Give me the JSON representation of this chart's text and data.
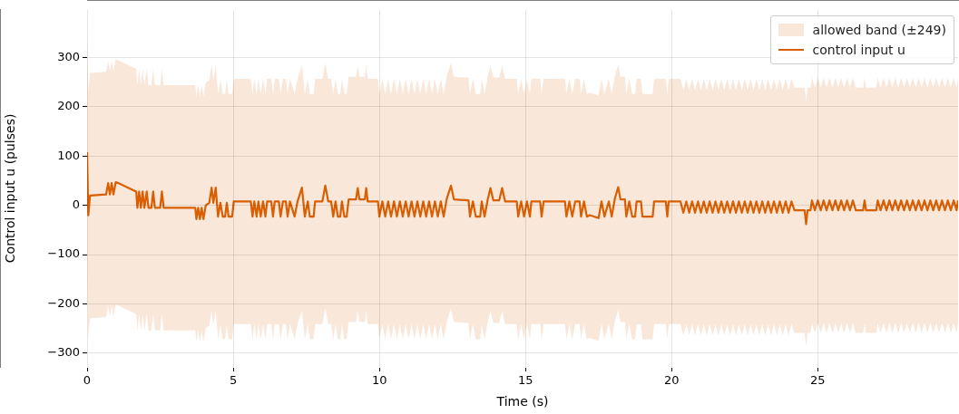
{
  "chart_data": {
    "type": "line",
    "xlabel": "Time (s)",
    "ylabel": "Control input u (pulses)",
    "xlim": [
      0,
      29.8
    ],
    "xticks": [
      0,
      5,
      10,
      15,
      20,
      25
    ],
    "ylim": [
      -328,
      397
    ],
    "yticks": [
      {
        "value": -300,
        "label": "−300"
      },
      {
        "value": -200,
        "label": "−200"
      },
      {
        "value": -100,
        "label": "−100"
      },
      0,
      100,
      200,
      300
    ],
    "annotations": [
      "allowed band (±249)"
    ],
    "grid": true,
    "legend": "top right",
    "marker": "none",
    "line_style": "solid",
    "x": [
      0,
      0.04,
      0.1,
      0.65,
      0.72,
      0.78,
      0.84,
      0.9,
      0.98,
      1.08,
      1.68,
      1.72,
      1.78,
      1.84,
      1.9,
      1.96,
      2.04,
      2.1,
      2.2,
      2.26,
      2.32,
      2.5,
      2.56,
      2.62,
      3.7,
      3.74,
      3.8,
      3.86,
      3.92,
      3.98,
      4.06,
      4.18,
      4.26,
      4.32,
      4.4,
      4.48,
      4.56,
      4.64,
      4.72,
      4.78,
      4.84,
      4.96,
      5.02,
      5.6,
      5.66,
      5.72,
      5.8,
      5.86,
      5.94,
      6.02,
      6.1,
      6.16,
      6.3,
      6.36,
      6.42,
      6.56,
      6.62,
      6.7,
      6.8,
      6.86,
      6.94,
      7.1,
      7.2,
      7.35,
      7.45,
      7.55,
      7.62,
      7.75,
      7.8,
      8.05,
      8.15,
      8.25,
      8.35,
      8.42,
      8.5,
      8.58,
      8.66,
      8.72,
      8.8,
      8.88,
      8.95,
      9.2,
      9.26,
      9.32,
      9.5,
      9.55,
      9.6,
      9.95,
      10,
      10.1,
      10.2,
      10.3,
      10.4,
      10.5,
      10.6,
      10.7,
      10.8,
      10.9,
      11,
      11.1,
      11.2,
      11.3,
      11.4,
      11.5,
      11.6,
      11.7,
      11.8,
      11.9,
      12,
      12.1,
      12.2,
      12.3,
      12.45,
      12.55,
      13.05,
      13.1,
      13.2,
      13.3,
      13.45,
      13.5,
      13.6,
      13.7,
      13.8,
      13.9,
      14.1,
      14.2,
      14.3,
      14.7,
      14.75,
      14.85,
      14.95,
      15.05,
      15.15,
      15.2,
      15.5,
      15.55,
      15.62,
      16.35,
      16.4,
      16.5,
      16.6,
      16.7,
      16.85,
      16.9,
      17,
      17.1,
      17.2,
      17.5,
      17.6,
      17.7,
      17.85,
      17.95,
      18.05,
      18.17,
      18.25,
      18.4,
      18.45,
      18.55,
      18.65,
      18.75,
      18.8,
      18.95,
      19,
      19.35,
      19.4,
      19.8,
      19.85,
      19.9,
      20.3,
      20.4,
      20.5,
      20.6,
      20.7,
      20.8,
      20.9,
      21,
      21.1,
      21.2,
      21.3,
      21.4,
      21.5,
      21.6,
      21.7,
      21.8,
      21.9,
      22,
      22.1,
      22.2,
      22.3,
      22.4,
      22.5,
      22.6,
      22.7,
      22.8,
      22.9,
      23,
      23.1,
      23.2,
      23.3,
      23.4,
      23.5,
      23.6,
      23.7,
      23.8,
      23.9,
      24,
      24.1,
      24.2,
      24.55,
      24.6,
      24.65,
      24.75,
      24.8,
      24.9,
      25,
      25.1,
      25.2,
      25.3,
      25.4,
      25.5,
      25.6,
      25.7,
      25.8,
      25.9,
      26,
      26.1,
      26.2,
      26.3,
      26.55,
      26.6,
      26.65,
      27,
      27.05,
      27.15,
      27.25,
      27.35,
      27.45,
      27.55,
      27.65,
      27.75,
      27.85,
      27.95,
      28.05,
      28.15,
      28.25,
      28.35,
      28.45,
      28.55,
      28.65,
      28.75,
      28.85,
      28.95,
      29.05,
      29.15,
      29.25,
      29.35,
      29.45,
      29.55,
      29.65,
      29.75,
      29.8
    ],
    "series": [
      {
        "name": "control input u",
        "type": "line",
        "color": "#d95f02",
        "upper": [
          357,
          229,
          269,
          271,
          294,
          271,
          294,
          271,
          296,
          294,
          277,
          244,
          277,
          244,
          277,
          244,
          277,
          244,
          244,
          277,
          244,
          244,
          277,
          244,
          244,
          221,
          244,
          221,
          244,
          221,
          249,
          254,
          285,
          254,
          285,
          226,
          254,
          226,
          226,
          254,
          226,
          226,
          257,
          257,
          226,
          257,
          226,
          257,
          226,
          257,
          226,
          257,
          257,
          226,
          257,
          257,
          226,
          257,
          257,
          226,
          257,
          226,
          257,
          285,
          226,
          257,
          226,
          226,
          257,
          257,
          289,
          257,
          257,
          226,
          257,
          226,
          226,
          257,
          226,
          226,
          261,
          261,
          284,
          261,
          261,
          284,
          257,
          257,
          226,
          257,
          226,
          257,
          226,
          257,
          226,
          257,
          226,
          257,
          226,
          257,
          226,
          257,
          226,
          257,
          226,
          257,
          226,
          257,
          226,
          257,
          226,
          261,
          289,
          261,
          259,
          226,
          257,
          226,
          226,
          257,
          226,
          259,
          284,
          259,
          259,
          284,
          257,
          257,
          226,
          257,
          226,
          257,
          226,
          257,
          257,
          226,
          257,
          257,
          226,
          257,
          226,
          257,
          257,
          226,
          257,
          226,
          229,
          223,
          257,
          226,
          257,
          226,
          261,
          286,
          261,
          261,
          226,
          257,
          226,
          226,
          257,
          257,
          226,
          226,
          257,
          257,
          226,
          257,
          257,
          234,
          257,
          234,
          257,
          234,
          257,
          234,
          257,
          234,
          257,
          234,
          257,
          234,
          257,
          234,
          257,
          234,
          257,
          234,
          257,
          234,
          257,
          234,
          257,
          234,
          257,
          234,
          257,
          234,
          257,
          234,
          257,
          234,
          257,
          234,
          257,
          234,
          257,
          239,
          239,
          211,
          239,
          239,
          259,
          239,
          259,
          239,
          259,
          239,
          259,
          239,
          259,
          239,
          259,
          239,
          259,
          239,
          259,
          239,
          239,
          259,
          239,
          239,
          259,
          239,
          259,
          239,
          259,
          239,
          259,
          239,
          259,
          239,
          259,
          239,
          259,
          239,
          259,
          239,
          259,
          239,
          259,
          239,
          259,
          239,
          259,
          239,
          259,
          239,
          259,
          239,
          259
        ],
        "lower": [
          -141,
          -269,
          -229,
          -227,
          -204,
          -227,
          -204,
          -227,
          -202,
          -204,
          -221,
          -254,
          -221,
          -254,
          -221,
          -254,
          -221,
          -254,
          -254,
          -221,
          -254,
          -254,
          -221,
          -254,
          -254,
          -277,
          -254,
          -277,
          -254,
          -277,
          -249,
          -244,
          -213,
          -244,
          -213,
          -272,
          -244,
          -272,
          -272,
          -244,
          -272,
          -272,
          -241,
          -241,
          -272,
          -241,
          -272,
          -241,
          -272,
          -241,
          -272,
          -241,
          -241,
          -272,
          -241,
          -241,
          -272,
          -241,
          -241,
          -272,
          -241,
          -272,
          -241,
          -213,
          -272,
          -241,
          -272,
          -272,
          -241,
          -241,
          -209,
          -241,
          -241,
          -272,
          -241,
          -272,
          -272,
          -241,
          -272,
          -272,
          -237,
          -237,
          -214,
          -237,
          -237,
          -214,
          -241,
          -241,
          -272,
          -241,
          -272,
          -241,
          -272,
          -241,
          -272,
          -241,
          -272,
          -241,
          -272,
          -241,
          -272,
          -241,
          -272,
          -241,
          -272,
          -241,
          -272,
          -241,
          -272,
          -241,
          -272,
          -237,
          -209,
          -237,
          -239,
          -272,
          -241,
          -272,
          -272,
          -241,
          -272,
          -239,
          -214,
          -239,
          -239,
          -214,
          -241,
          -241,
          -272,
          -241,
          -272,
          -241,
          -272,
          -241,
          -241,
          -272,
          -241,
          -241,
          -272,
          -241,
          -272,
          -241,
          -241,
          -272,
          -241,
          -272,
          -269,
          -275,
          -241,
          -272,
          -241,
          -272,
          -237,
          -212,
          -237,
          -237,
          -272,
          -241,
          -272,
          -272,
          -241,
          -241,
          -272,
          -272,
          -241,
          -241,
          -272,
          -241,
          -241,
          -264,
          -241,
          -264,
          -241,
          -264,
          -241,
          -264,
          -241,
          -264,
          -241,
          -264,
          -241,
          -264,
          -241,
          -264,
          -241,
          -264,
          -241,
          -264,
          -241,
          -264,
          -241,
          -264,
          -241,
          -264,
          -241,
          -264,
          -241,
          -264,
          -241,
          -264,
          -241,
          -264,
          -241,
          -264,
          -241,
          -264,
          -241,
          -259,
          -259,
          -287,
          -259,
          -259,
          -239,
          -259,
          -239,
          -259,
          -239,
          -259,
          -239,
          -259,
          -239,
          -259,
          -239,
          -259,
          -239,
          -259,
          -239,
          -259,
          -259,
          -239,
          -259,
          -259,
          -239,
          -259,
          -239,
          -259,
          -239,
          -259,
          -239,
          -259,
          -239,
          -259,
          -239,
          -259,
          -239,
          -259,
          -239,
          -259,
          -239,
          -259,
          -239,
          -259,
          -239,
          -259,
          -239,
          -259,
          -239,
          -259,
          -239,
          -259,
          -239
        ],
        "values": [
          108,
          -20,
          20,
          22,
          45,
          22,
          45,
          22,
          47,
          45,
          28,
          -5,
          28,
          -5,
          28,
          -5,
          28,
          -5,
          -5,
          28,
          -5,
          -5,
          28,
          -5,
          -5,
          -28,
          -5,
          -28,
          -5,
          -28,
          0,
          5,
          36,
          5,
          36,
          -23,
          5,
          -23,
          -23,
          5,
          -23,
          -23,
          8,
          8,
          -23,
          8,
          -23,
          8,
          -23,
          8,
          -23,
          8,
          8,
          -23,
          8,
          8,
          -23,
          8,
          8,
          -23,
          8,
          -23,
          8,
          36,
          -23,
          8,
          -23,
          -23,
          8,
          8,
          40,
          8,
          8,
          -23,
          8,
          -23,
          -23,
          8,
          -23,
          -23,
          12,
          12,
          35,
          12,
          12,
          35,
          8,
          8,
          -23,
          8,
          -23,
          8,
          -23,
          8,
          -23,
          8,
          -23,
          8,
          -23,
          8,
          -23,
          8,
          -23,
          8,
          -23,
          8,
          -23,
          8,
          -23,
          8,
          -23,
          12,
          40,
          12,
          10,
          -23,
          8,
          -23,
          -23,
          8,
          -23,
          10,
          35,
          10,
          10,
          35,
          8,
          8,
          -23,
          8,
          -23,
          8,
          -23,
          8,
          8,
          -23,
          8,
          8,
          -23,
          8,
          -23,
          8,
          8,
          -23,
          8,
          -23,
          -20,
          -26,
          8,
          -23,
          8,
          -23,
          12,
          37,
          12,
          12,
          -23,
          8,
          -23,
          -23,
          8,
          8,
          -23,
          -23,
          8,
          8,
          -23,
          8,
          8,
          -15,
          8,
          -15,
          8,
          -15,
          8,
          -15,
          8,
          -15,
          8,
          -15,
          8,
          -15,
          8,
          -15,
          8,
          -15,
          8,
          -15,
          8,
          -15,
          8,
          -15,
          8,
          -15,
          8,
          -15,
          8,
          -15,
          8,
          -15,
          8,
          -15,
          8,
          -15,
          8,
          -15,
          8,
          -10,
          -10,
          -38,
          -10,
          -10,
          10,
          -10,
          10,
          -10,
          10,
          -10,
          10,
          -10,
          10,
          -10,
          10,
          -10,
          10,
          -10,
          10,
          -10,
          -10,
          10,
          -10,
          -10,
          10,
          -10,
          10,
          -10,
          10,
          -10,
          10,
          -10,
          10,
          -10,
          10,
          -10,
          10,
          -10,
          10,
          -10,
          10,
          -10,
          10,
          -10,
          10,
          -10,
          10,
          -10,
          10,
          -10,
          10,
          -10,
          10
        ]
      }
    ]
  }
}
